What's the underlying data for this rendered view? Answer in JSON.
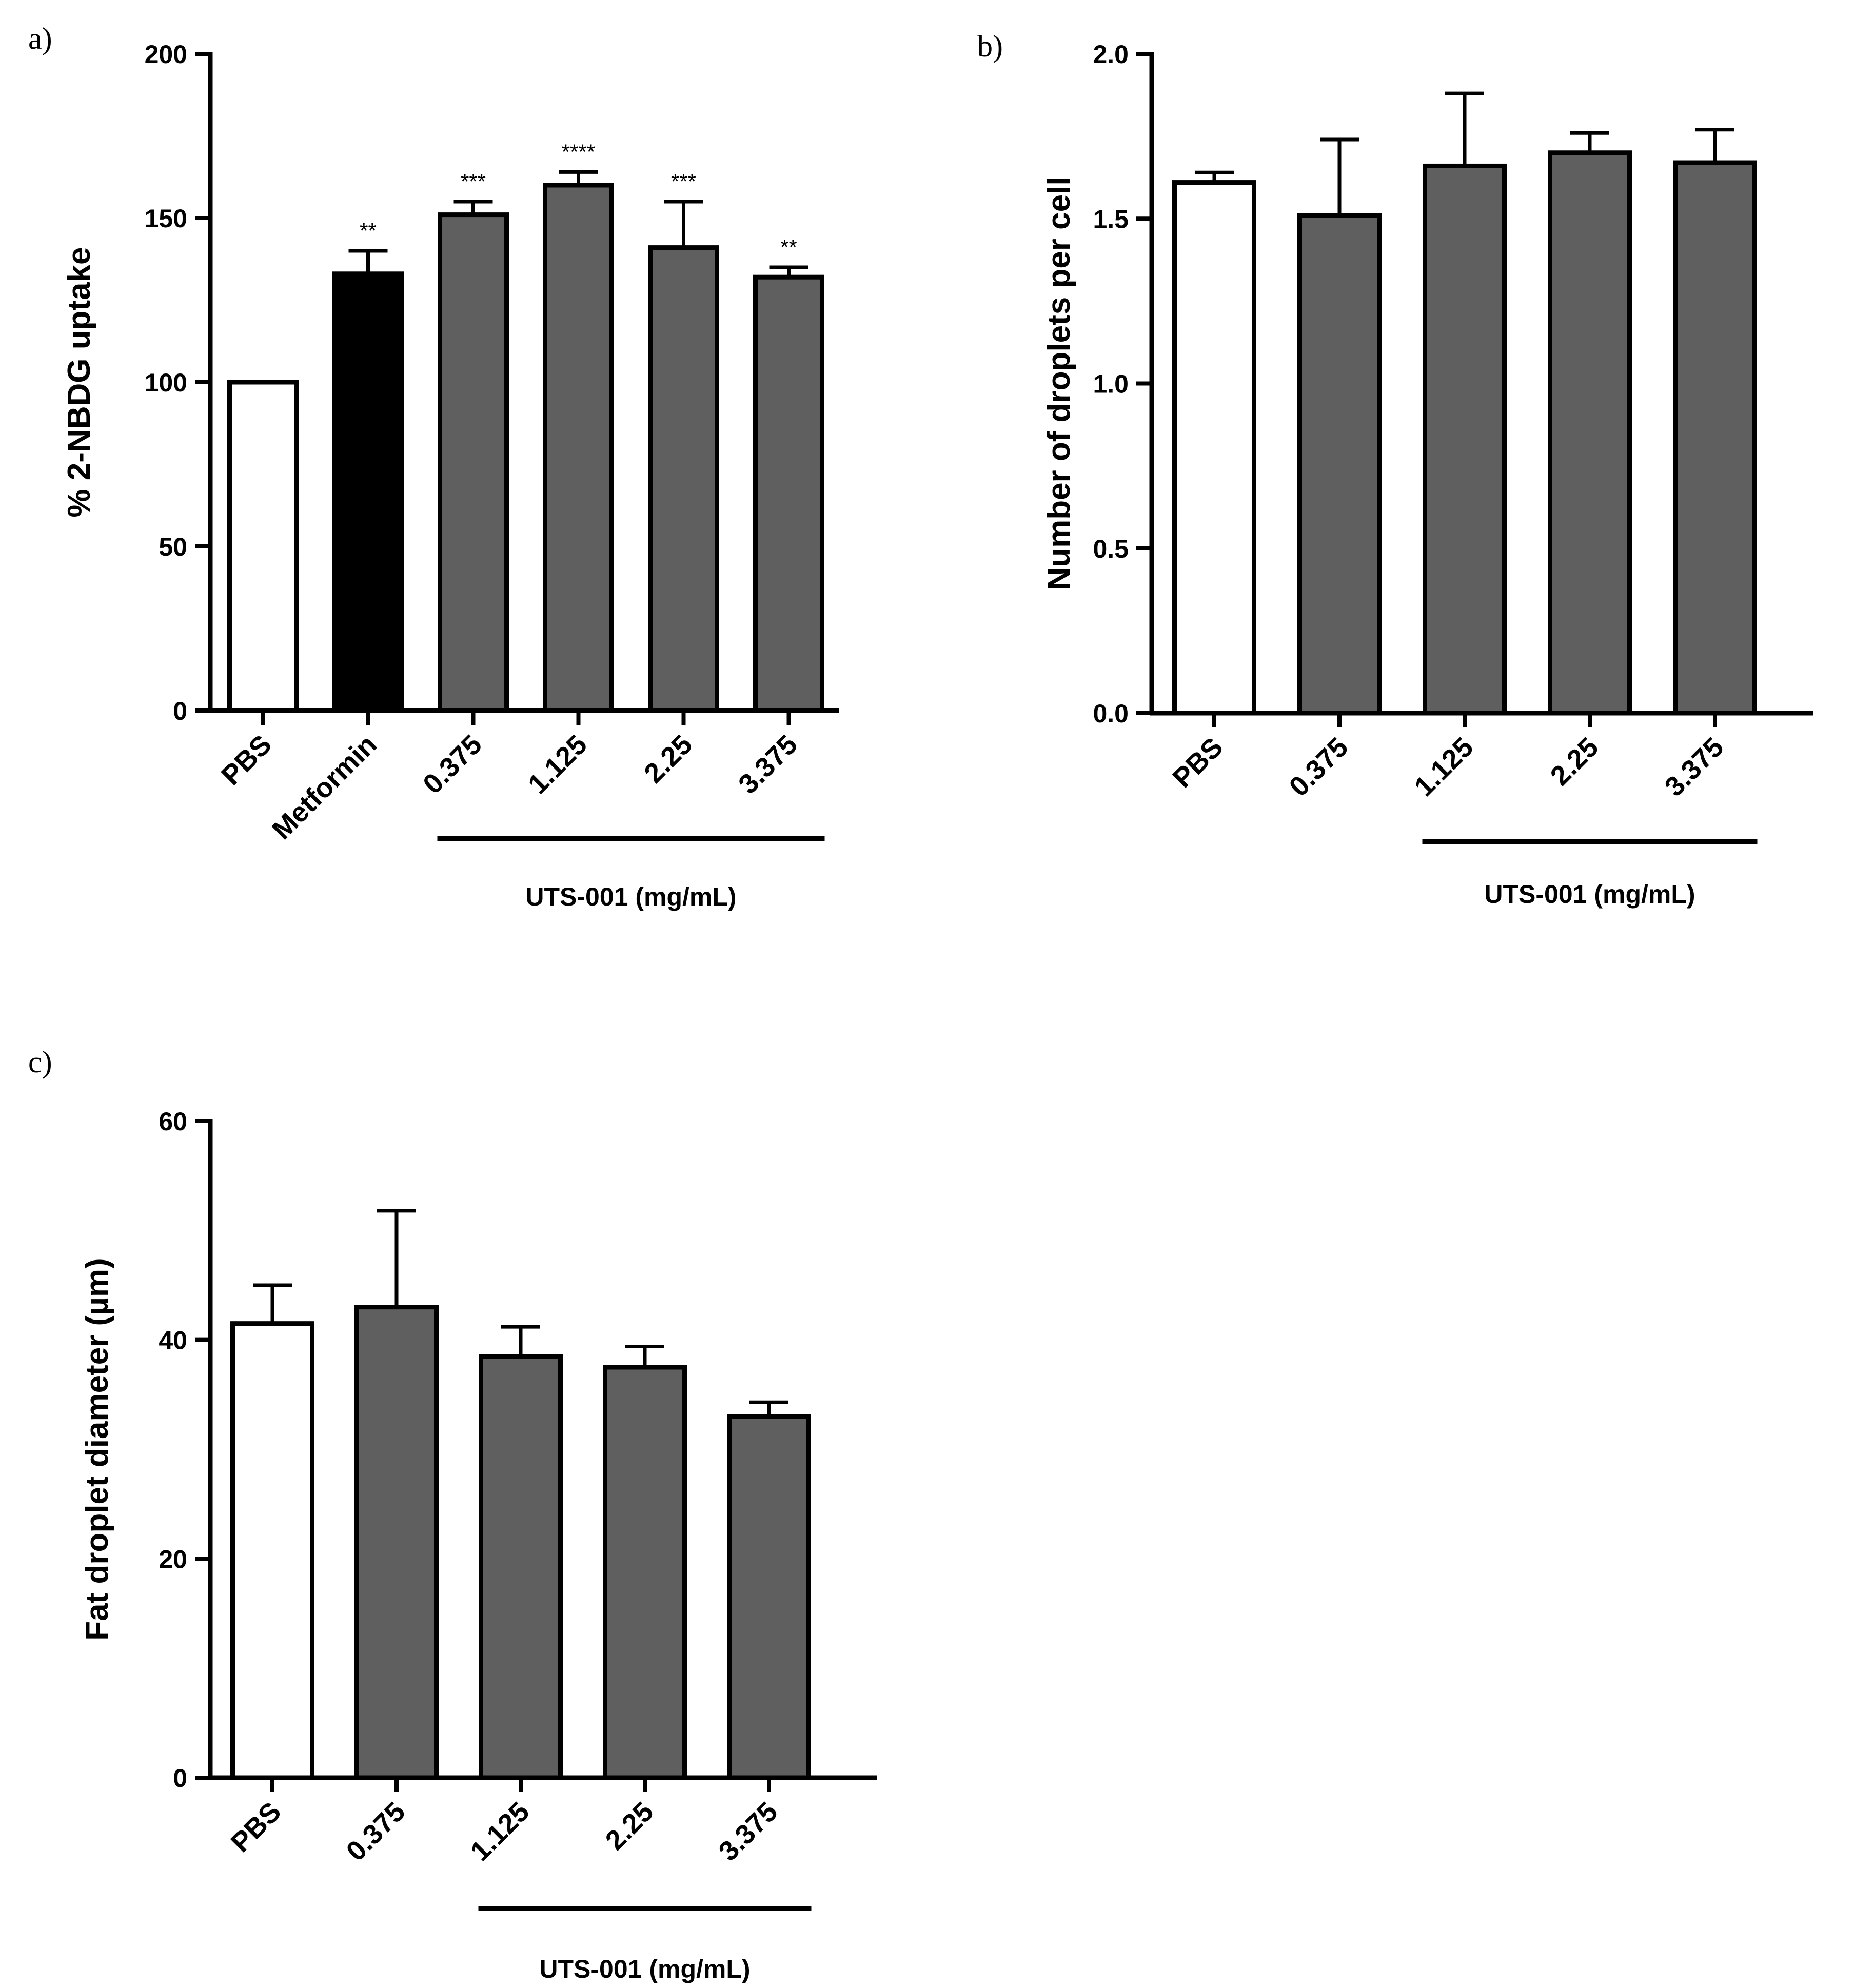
{
  "chart_data": [
    {
      "panel_label": "a)",
      "type": "bar",
      "ylabel": "% 2-NBDG uptake",
      "xlabel": "",
      "ylim": [
        0,
        200
      ],
      "yticks": [
        0,
        50,
        100,
        150,
        200
      ],
      "categories": [
        "PBS",
        "Metformin",
        "0.375",
        "1.125",
        "2.25",
        "3.375"
      ],
      "values": [
        100,
        133,
        151,
        160,
        141,
        132
      ],
      "errors": [
        0,
        7,
        4,
        4,
        14,
        3
      ],
      "bar_colors": [
        "#ffffff",
        "#000000",
        "#5f5f5f",
        "#5f5f5f",
        "#5f5f5f",
        "#5f5f5f"
      ],
      "significance": [
        "",
        "**",
        "***",
        "****",
        "***",
        "**"
      ],
      "group_label": "UTS-001 (mg/mL)",
      "group_span": [
        2,
        5
      ]
    },
    {
      "panel_label": "b)",
      "type": "bar",
      "ylabel": "Number of droplets per cell",
      "xlabel": "",
      "ylim": [
        0,
        2.0
      ],
      "yticks": [
        "0.0",
        "0.5",
        "1.0",
        "1.5",
        "2.0"
      ],
      "categories": [
        "PBS",
        "0.375",
        "1.125",
        "2.25",
        "3.375"
      ],
      "values": [
        1.61,
        1.51,
        1.66,
        1.7,
        1.67
      ],
      "errors": [
        0.03,
        0.23,
        0.22,
        0.06,
        0.1
      ],
      "bar_colors": [
        "#ffffff",
        "#5f5f5f",
        "#5f5f5f",
        "#5f5f5f",
        "#5f5f5f"
      ],
      "significance": [
        "",
        "",
        "",
        "",
        ""
      ],
      "group_label": "UTS-001 (mg/mL)",
      "group_span": [
        2,
        4
      ]
    },
    {
      "panel_label": "c)",
      "type": "bar",
      "ylabel": "Fat droplet diameter (µm)",
      "xlabel": "",
      "ylim": [
        0,
        60
      ],
      "yticks": [
        0,
        20,
        40,
        60
      ],
      "categories": [
        "PBS",
        "0.375",
        "1.125",
        "2.25",
        "3.375"
      ],
      "values": [
        41.5,
        43,
        38.5,
        37.5,
        33
      ],
      "errors": [
        3.5,
        8.8,
        2.7,
        1.9,
        1.3
      ],
      "bar_colors": [
        "#ffffff",
        "#5f5f5f",
        "#5f5f5f",
        "#5f5f5f",
        "#5f5f5f"
      ],
      "significance": [
        "",
        "",
        "",
        "",
        ""
      ],
      "group_label": "UTS-001 (mg/mL)",
      "group_span": [
        2,
        4
      ]
    }
  ]
}
